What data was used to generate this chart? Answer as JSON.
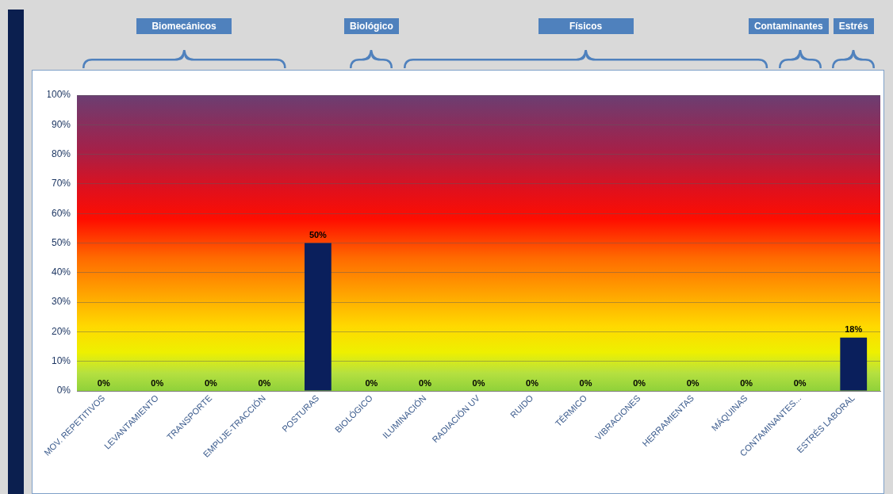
{
  "chart_data": {
    "type": "bar",
    "categories": [
      "MOV. REPETITIVOS",
      "LEVANTAMIENTO",
      "TRANSPORTE",
      "EMPUJE-TRACCIÓN",
      "POSTURAS",
      "BIOLÓGICO",
      "ILUMINACIÓN",
      "RADIACIÓN UV",
      "RUIDO",
      "TÉRMICO",
      "VIBRACIONES",
      "HERRAMIENTAS",
      "MÁQUINAS",
      "CONTAMINANTES...",
      "ESTRÉS LABORAL"
    ],
    "values": [
      0,
      0,
      0,
      0,
      50,
      0,
      0,
      0,
      0,
      0,
      0,
      0,
      0,
      0,
      18
    ],
    "value_labels": [
      "0%",
      "0%",
      "0%",
      "0%",
      "50%",
      "0%",
      "0%",
      "0%",
      "0%",
      "0%",
      "0%",
      "0%",
      "0%",
      "0%",
      "18%"
    ],
    "color": "#0a1f5c",
    "ylim": [
      0,
      100
    ],
    "yticks": [
      {
        "value": 0,
        "label": "0%"
      },
      {
        "value": 10,
        "label": "10%"
      },
      {
        "value": 20,
        "label": "20%"
      },
      {
        "value": 30,
        "label": "30%"
      },
      {
        "value": 40,
        "label": "40%"
      },
      {
        "value": 50,
        "label": "50%"
      },
      {
        "value": 60,
        "label": "60%"
      },
      {
        "value": 70,
        "label": "70%"
      },
      {
        "value": 80,
        "label": "80%"
      },
      {
        "value": 90,
        "label": "90%"
      },
      {
        "value": 100,
        "label": "100%"
      }
    ],
    "grid": "y",
    "legend": false,
    "annotations": [
      "Biomecánicos",
      "Biológico",
      "Físicos",
      "Contaminantes",
      "Estrés"
    ]
  }
}
